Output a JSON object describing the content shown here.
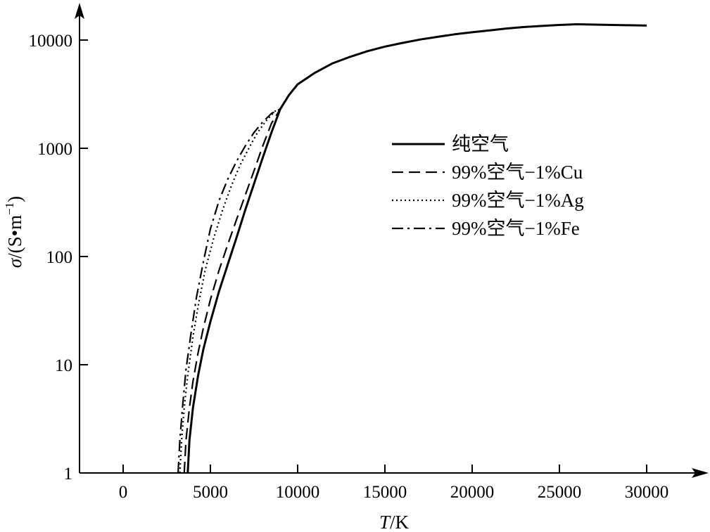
{
  "chart_data": {
    "type": "line",
    "xlabel_var": "T",
    "xlabel_unit": "/K",
    "ylabel_var": "σ",
    "ylabel_unit": "/(S•m",
    "ylabel_sup": "−1",
    "ylabel_close": ")",
    "xlim": [
      -2500,
      33000
    ],
    "ylim": [
      1,
      30000
    ],
    "yscale": "log",
    "grid": false,
    "legend_position": "top-right",
    "xticks": [
      0,
      5000,
      10000,
      15000,
      20000,
      25000,
      30000
    ],
    "xtick_labels": [
      "0",
      "5000",
      "10000",
      "15000",
      "20000",
      "25000",
      "30000"
    ],
    "yticks": [
      1,
      10,
      100,
      1000,
      10000
    ],
    "ytick_labels": [
      "1",
      "10",
      "100",
      "1000",
      "10000"
    ],
    "series": [
      {
        "name": "纯空气",
        "style": "solid",
        "x": [
          3700,
          3800,
          4000,
          4300,
          4600,
          5000,
          5500,
          6000,
          6500,
          7000,
          7500,
          8000,
          8500,
          9000,
          9500,
          10000,
          11000,
          12000,
          13000,
          14000,
          15000,
          16000,
          17000,
          18000,
          19000,
          20000,
          21000,
          22000,
          23000,
          24000,
          25000,
          26000,
          27000,
          28000,
          29000,
          30000
        ],
        "y": [
          1,
          2,
          4,
          8,
          14,
          25,
          48,
          85,
          150,
          270,
          470,
          820,
          1400,
          2300,
          3100,
          3900,
          5000,
          6100,
          7000,
          7900,
          8700,
          9400,
          10100,
          10700,
          11300,
          11800,
          12300,
          12800,
          13200,
          13500,
          13800,
          14000,
          13900,
          13800,
          13700,
          13600
        ]
      },
      {
        "name": "99%空气−1%Cu",
        "style": "dashed",
        "x": [
          3500,
          3600,
          3800,
          4000,
          4300,
          4600,
          5000,
          5500,
          6000,
          6500,
          7000,
          7500,
          8000,
          8500,
          9000
        ],
        "y": [
          1,
          2,
          4,
          7,
          13,
          22,
          40,
          75,
          130,
          220,
          370,
          620,
          1050,
          1700,
          2300
        ]
      },
      {
        "name": "99%空气−1%Ag",
        "style": "dotted",
        "x": [
          3250,
          3350,
          3500,
          3700,
          4000,
          4300,
          4700,
          5200,
          5700,
          6200,
          6700,
          7200,
          7700,
          8200,
          8700,
          9000
        ],
        "y": [
          1,
          2,
          4,
          8,
          18,
          35,
          75,
          150,
          270,
          450,
          700,
          1000,
          1400,
          1800,
          2200,
          2300
        ]
      },
      {
        "name": "99%空气−1%Fe",
        "style": "dashdot",
        "x": [
          3150,
          3250,
          3400,
          3600,
          3900,
          4200,
          4600,
          5000,
          5500,
          6000,
          6500,
          7000,
          7500,
          8000,
          8500,
          9000
        ],
        "y": [
          1,
          2,
          4,
          9,
          20,
          42,
          90,
          180,
          330,
          520,
          760,
          1050,
          1400,
          1750,
          2100,
          2300
        ]
      }
    ]
  }
}
